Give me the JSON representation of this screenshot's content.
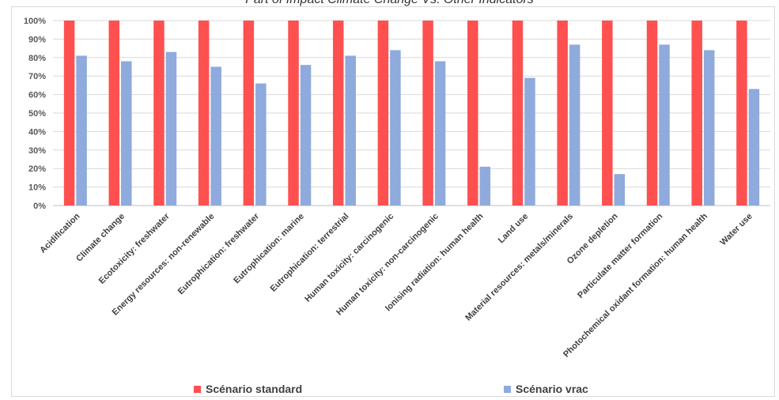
{
  "chart_data": {
    "type": "bar",
    "title": "Part of Impact Climate Change Vs. Other Indicators",
    "categories": [
      "Acidification",
      "Climate change",
      "Ecotoxicity: freshwater",
      "Energy resources: non-renewable",
      "Eutrophication: freshwater",
      "Eutrophication: marine",
      "Eutrophication: terrestrial",
      "Human toxicity: carcinogenic",
      "Human toxicity: non-carcinogenic",
      "Ionising radiation: human health",
      "Land use",
      "Material resources: metals/minerals",
      "Ozone depletion",
      "Particulate matter formation",
      "Photochemical oxidant formation: human health",
      "Water use"
    ],
    "series": [
      {
        "name": "Scénario standard",
        "color": "#ff5050",
        "values": [
          100,
          100,
          100,
          100,
          100,
          100,
          100,
          100,
          100,
          100,
          100,
          100,
          100,
          100,
          100,
          100
        ]
      },
      {
        "name": "Scénario vrac",
        "color": "#8faadc",
        "values": [
          81,
          78,
          83,
          75,
          66,
          76,
          81,
          84,
          78,
          21,
          69,
          87,
          17,
          87,
          84,
          63
        ]
      }
    ],
    "ylim": [
      0,
      100
    ],
    "y_ticks": [
      "0%",
      "10%",
      "20%",
      "30%",
      "40%",
      "50%",
      "60%",
      "70%",
      "80%",
      "90%",
      "100%"
    ],
    "grid": true,
    "legend_position": "bottom"
  }
}
